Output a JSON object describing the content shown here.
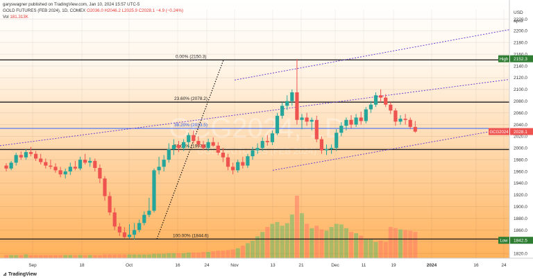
{
  "header": {
    "published": "garyswagner published on TradingView.com, Jan 10, 2024 15:57 UTC-5",
    "symbol": "GOLD FUTURES (FEB 2024), 1D, COMEX",
    "ohlc": "O2036.0 H2046.2 L2025.9 C2028.1 −4.9 (−0.24%)",
    "vol_label": "Vol",
    "vol_value": "181.313K"
  },
  "footer": {
    "brand": "TradingView"
  },
  "watermark": {
    "symbol": "GCG2024, 1D",
    "name": "GOLD FUTURES (FEB 2024)"
  },
  "colors": {
    "up": "#26a69a",
    "down": "#ef5350",
    "gradient_top": "#ffffff",
    "gradient_bottom": "#ffb15a",
    "channel": "#6a3fd1",
    "fib_blue": "#2962ff"
  },
  "chart_data": {
    "type": "candlestick",
    "currency": "USD",
    "scale_mode": "apoz",
    "ylim": [
      1812,
      2236
    ],
    "y_ticks": [
      1820,
      1840,
      1860,
      1880,
      1900,
      1920,
      1940,
      1960,
      1980,
      2000,
      2020,
      2040,
      2060,
      2080,
      2100,
      2120,
      2140,
      2160,
      2180,
      2200,
      2220
    ],
    "x_ticks": [
      "Sep",
      "18",
      "Oct",
      "16",
      "24",
      "Nov",
      "13",
      "21",
      "Dec",
      "11",
      "19",
      "2024",
      "16",
      "24"
    ],
    "price_labels": [
      {
        "name": "High",
        "value": "2152.3",
        "color": "#2e7d32"
      },
      {
        "name": "GCG2024",
        "value": "2028.1",
        "color": "#ef5350"
      },
      {
        "name": "Low",
        "value": "1842.5",
        "color": "#2e7d32"
      }
    ],
    "fib_levels": [
      {
        "label": "0.00% (2150.3)",
        "price": 2150.3,
        "color": "#222"
      },
      {
        "label": "23.60% (2078.2)",
        "price": 2078.2,
        "color": "#222"
      },
      {
        "label": "38.20% (2033.5)",
        "price": 2033.5,
        "color": "#2962ff"
      },
      {
        "label": "50.00% (1997.4)",
        "price": 1997.4,
        "color": "#222"
      },
      {
        "label": "100.00% (1844.6)",
        "price": 1844.6,
        "color": "#222"
      }
    ],
    "candles": [
      [
        1970,
        1974,
        1960,
        1965
      ],
      [
        1965,
        1978,
        1962,
        1975
      ],
      [
        1975,
        1992,
        1970,
        1988
      ],
      [
        1988,
        1994,
        1980,
        1984
      ],
      [
        1984,
        1998,
        1980,
        1993
      ],
      [
        1993,
        2002,
        1986,
        1990
      ],
      [
        1990,
        1995,
        1978,
        1982
      ],
      [
        1982,
        1990,
        1972,
        1976
      ],
      [
        1976,
        1982,
        1965,
        1970
      ],
      [
        1970,
        1980,
        1964,
        1968
      ],
      [
        1968,
        1974,
        1958,
        1962
      ],
      [
        1962,
        1968,
        1950,
        1955
      ],
      [
        1955,
        1965,
        1948,
        1960
      ],
      [
        1960,
        1975,
        1954,
        1968
      ],
      [
        1968,
        1978,
        1962,
        1965
      ],
      [
        1965,
        1985,
        1962,
        1980
      ],
      [
        1980,
        1990,
        1972,
        1975
      ],
      [
        1975,
        1984,
        1968,
        1978
      ],
      [
        1978,
        1982,
        1960,
        1966
      ],
      [
        1966,
        1972,
        1940,
        1948
      ],
      [
        1948,
        1952,
        1910,
        1918
      ],
      [
        1918,
        1925,
        1885,
        1890
      ],
      [
        1890,
        1898,
        1860,
        1866
      ],
      [
        1866,
        1872,
        1850,
        1856
      ],
      [
        1856,
        1865,
        1845,
        1848
      ],
      [
        1848,
        1870,
        1845,
        1852
      ],
      [
        1852,
        1872,
        1844,
        1860
      ],
      [
        1860,
        1878,
        1856,
        1872
      ],
      [
        1872,
        1892,
        1868,
        1886
      ],
      [
        1886,
        1915,
        1882,
        1893
      ],
      [
        1893,
        1965,
        1890,
        1962
      ],
      [
        1962,
        1985,
        1955,
        1968
      ],
      [
        1968,
        1988,
        1960,
        1980
      ],
      [
        1980,
        2008,
        1975,
        1998
      ],
      [
        1998,
        2015,
        1988,
        2005
      ],
      [
        2005,
        2012,
        1993,
        2000
      ],
      [
        2000,
        2015,
        1995,
        2010
      ],
      [
        2010,
        2026,
        2000,
        2022
      ],
      [
        2022,
        2030,
        2008,
        2012
      ],
      [
        2012,
        2020,
        2002,
        2006
      ],
      [
        2006,
        2012,
        1996,
        2000
      ],
      [
        2000,
        2016,
        1995,
        2010
      ],
      [
        2010,
        2018,
        2002,
        2004
      ],
      [
        2004,
        2010,
        1988,
        1992
      ],
      [
        1992,
        2000,
        1976,
        1984
      ],
      [
        1984,
        1990,
        1962,
        1968
      ],
      [
        1968,
        1975,
        1955,
        1962
      ],
      [
        1962,
        1980,
        1958,
        1976
      ],
      [
        1976,
        1985,
        1965,
        1970
      ],
      [
        1970,
        1990,
        1966,
        1986
      ],
      [
        1986,
        2002,
        1980,
        1996
      ],
      [
        1996,
        2008,
        1990,
        2000
      ],
      [
        2000,
        2018,
        1995,
        2012
      ],
      [
        2012,
        2022,
        2004,
        2010
      ],
      [
        2010,
        2030,
        2005,
        2025
      ],
      [
        2025,
        2060,
        2022,
        2055
      ],
      [
        2055,
        2078,
        2050,
        2072
      ],
      [
        2072,
        2090,
        2065,
        2080
      ],
      [
        2080,
        2100,
        2072,
        2095
      ],
      [
        2095,
        2152,
        2040,
        2048
      ],
      [
        2048,
        2058,
        2032,
        2052
      ],
      [
        2052,
        2060,
        2038,
        2045
      ],
      [
        2045,
        2052,
        2030,
        2048
      ],
      [
        2048,
        2055,
        2010,
        2015
      ],
      [
        2015,
        2020,
        1990,
        1996
      ],
      [
        1996,
        2006,
        1988,
        1998
      ],
      [
        1998,
        2006,
        1990,
        2000
      ],
      [
        2000,
        2032,
        1995,
        2026
      ],
      [
        2026,
        2044,
        2020,
        2038
      ],
      [
        2038,
        2052,
        2030,
        2048
      ],
      [
        2048,
        2056,
        2034,
        2040
      ],
      [
        2040,
        2058,
        2036,
        2052
      ],
      [
        2052,
        2062,
        2040,
        2046
      ],
      [
        2046,
        2070,
        2042,
        2066
      ],
      [
        2066,
        2080,
        2060,
        2074
      ],
      [
        2074,
        2095,
        2070,
        2090
      ],
      [
        2090,
        2100,
        2078,
        2086
      ],
      [
        2086,
        2092,
        2070,
        2074
      ],
      [
        2074,
        2078,
        2058,
        2064
      ],
      [
        2064,
        2068,
        2038,
        2045
      ],
      [
        2045,
        2056,
        2040,
        2050
      ],
      [
        2050,
        2058,
        2040,
        2048
      ],
      [
        2048,
        2052,
        2032,
        2036
      ],
      [
        2036,
        2046,
        2026,
        2028
      ]
    ],
    "volume": [
      0.05,
      0.05,
      0.05,
      0.05,
      0.06,
      0.05,
      0.05,
      0.05,
      0.05,
      0.05,
      0.05,
      0.05,
      0.05,
      0.05,
      0.05,
      0.05,
      0.05,
      0.05,
      0.05,
      0.05,
      0.06,
      0.06,
      0.06,
      0.06,
      0.06,
      0.06,
      0.06,
      0.06,
      0.06,
      0.06,
      0.07,
      0.07,
      0.07,
      0.08,
      0.08,
      0.08,
      0.08,
      0.09,
      0.09,
      0.09,
      0.1,
      0.1,
      0.11,
      0.12,
      0.12,
      0.13,
      0.14,
      0.16,
      0.2,
      0.24,
      0.28,
      0.35,
      0.42,
      0.5,
      0.55,
      0.58,
      0.52,
      0.56,
      0.7,
      1.0,
      0.72,
      0.55,
      0.48,
      0.52,
      0.46,
      0.44,
      0.5,
      0.55,
      0.54,
      0.48,
      0.42,
      0.4,
      0.36,
      0.3,
      0.3,
      0.26,
      0.28,
      0.26,
      0.5,
      0.48,
      0.46,
      0.45,
      0.44,
      0.42
    ]
  }
}
